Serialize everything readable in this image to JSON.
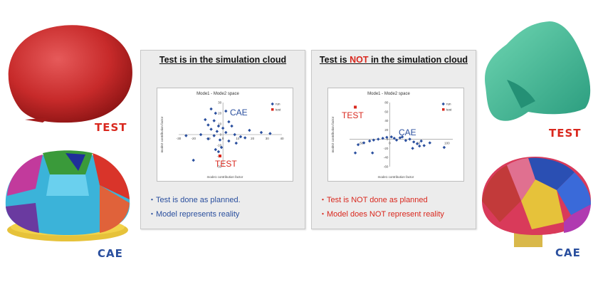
{
  "left_images": {
    "top_label": "TEST",
    "bottom_label": "CAE"
  },
  "right_images": {
    "top_label": "TEST",
    "bottom_label": "CAE"
  },
  "panels": [
    {
      "title_before": "Test is in the simulation cloud",
      "title_highlight": "",
      "title_after": "",
      "bullets": [
        "・Test is done as planned.",
        "・Model represents reality"
      ],
      "bullet_color": "#2a4f9e",
      "cae_label": "CAE",
      "test_label": "TEST"
    },
    {
      "title_before": "Test is ",
      "title_highlight": "NOT",
      "title_after": " in the simulation cloud",
      "bullets": [
        "・Test is NOT done as planned",
        "・Model does NOT represent reality"
      ],
      "bullet_color": "#d9281e",
      "cae_label": "CAE",
      "test_label": "TEST"
    }
  ],
  "chart_data": [
    {
      "type": "scatter",
      "title": "Mode1 - Mode2 space",
      "xlabel": "mode1 contribution factor",
      "ylabel": "mode2 contribution factor",
      "xlim": [
        -30,
        40
      ],
      "ylim": [
        -30,
        30
      ],
      "xticks": [
        "-30",
        "-20",
        "-10",
        "0",
        "10",
        "20",
        "30",
        "40"
      ],
      "yticks": [
        "30",
        "20",
        "10",
        "0",
        "-10",
        "-20",
        "-30"
      ],
      "legend": [
        "run",
        "test"
      ],
      "legend_position": "top-right",
      "series": [
        {
          "name": "run",
          "color": "#2a4f9e",
          "points": [
            [
              -8,
              24
            ],
            [
              -5,
              20
            ],
            [
              2,
              22
            ],
            [
              -12,
              14
            ],
            [
              -6,
              13
            ],
            [
              4,
              12
            ],
            [
              -10,
              9
            ],
            [
              -3,
              8
            ],
            [
              0,
              6
            ],
            [
              6,
              8
            ],
            [
              -8,
              5
            ],
            [
              -4,
              3
            ],
            [
              2,
              2
            ],
            [
              -15,
              0
            ],
            [
              -6,
              -1
            ],
            [
              8,
              0
            ],
            [
              12,
              -2
            ],
            [
              18,
              4
            ],
            [
              -25,
              -1
            ],
            [
              -10,
              -4
            ],
            [
              -2,
              -5
            ],
            [
              4,
              -6
            ],
            [
              9,
              -8
            ],
            [
              -1,
              -12
            ],
            [
              -5,
              -14
            ],
            [
              -3,
              -16
            ],
            [
              15,
              -3
            ],
            [
              -20,
              -24
            ],
            [
              26,
              2
            ],
            [
              32,
              1
            ]
          ]
        },
        {
          "name": "test",
          "color": "#d9281e",
          "points": [
            [
              -2,
              -20
            ]
          ]
        }
      ]
    },
    {
      "type": "scatter",
      "title": "Mode1 - Mode2 space",
      "xlabel": "mode1 contribution factor",
      "ylabel": "mode2 contribution factor",
      "xlim": [
        -70,
        110
      ],
      "ylim": [
        -60,
        80
      ],
      "xticks": [
        "-50",
        "0",
        "50",
        "100"
      ],
      "yticks": [
        "80",
        "60",
        "40",
        "20",
        "0",
        "-20",
        "-40",
        "-60"
      ],
      "legend": [
        "run",
        "test"
      ],
      "legend_position": "top-right",
      "series": [
        {
          "name": "run",
          "color": "#2a4f9e",
          "points": [
            [
              -55,
              -12
            ],
            [
              -45,
              -8
            ],
            [
              -35,
              -4
            ],
            [
              -28,
              -2
            ],
            [
              -20,
              0
            ],
            [
              -12,
              2
            ],
            [
              -5,
              4
            ],
            [
              3,
              5
            ],
            [
              8,
              2
            ],
            [
              12,
              -2
            ],
            [
              18,
              3
            ],
            [
              22,
              5
            ],
            [
              28,
              -3
            ],
            [
              35,
              0
            ],
            [
              42,
              -6
            ],
            [
              48,
              -10
            ],
            [
              55,
              -4
            ],
            [
              60,
              -14
            ],
            [
              40,
              -20
            ],
            [
              -30,
              -30
            ],
            [
              70,
              -8
            ],
            [
              95,
              -18
            ],
            [
              -60,
              -30
            ],
            [
              52,
              -15
            ]
          ]
        },
        {
          "name": "test",
          "color": "#d9281e",
          "points": [
            [
              -60,
              70
            ]
          ]
        }
      ]
    }
  ]
}
